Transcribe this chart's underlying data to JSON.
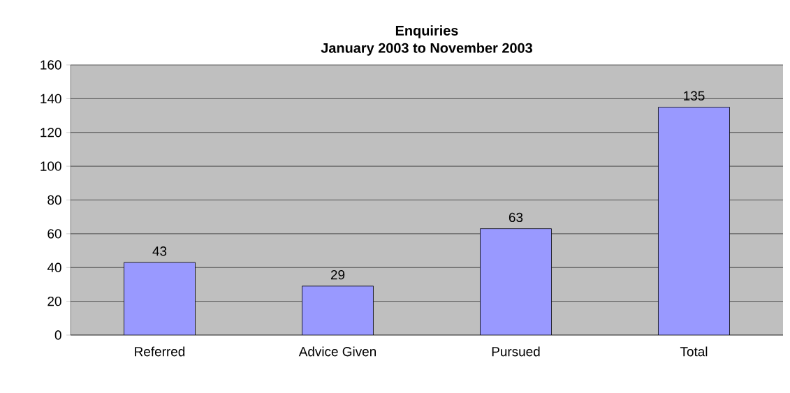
{
  "chart_data": {
    "type": "bar",
    "title": "Enquiries",
    "subtitle": "January 2003 to November 2003",
    "categories": [
      "Referred",
      "Advice Given",
      "Pursued",
      "Total"
    ],
    "values": [
      43,
      29,
      63,
      135
    ],
    "color": "#9999ff",
    "ylim": [
      0,
      160
    ],
    "yticks": [
      0,
      20,
      40,
      60,
      80,
      100,
      120,
      140,
      160
    ],
    "grid": "y",
    "data_labels": true
  }
}
